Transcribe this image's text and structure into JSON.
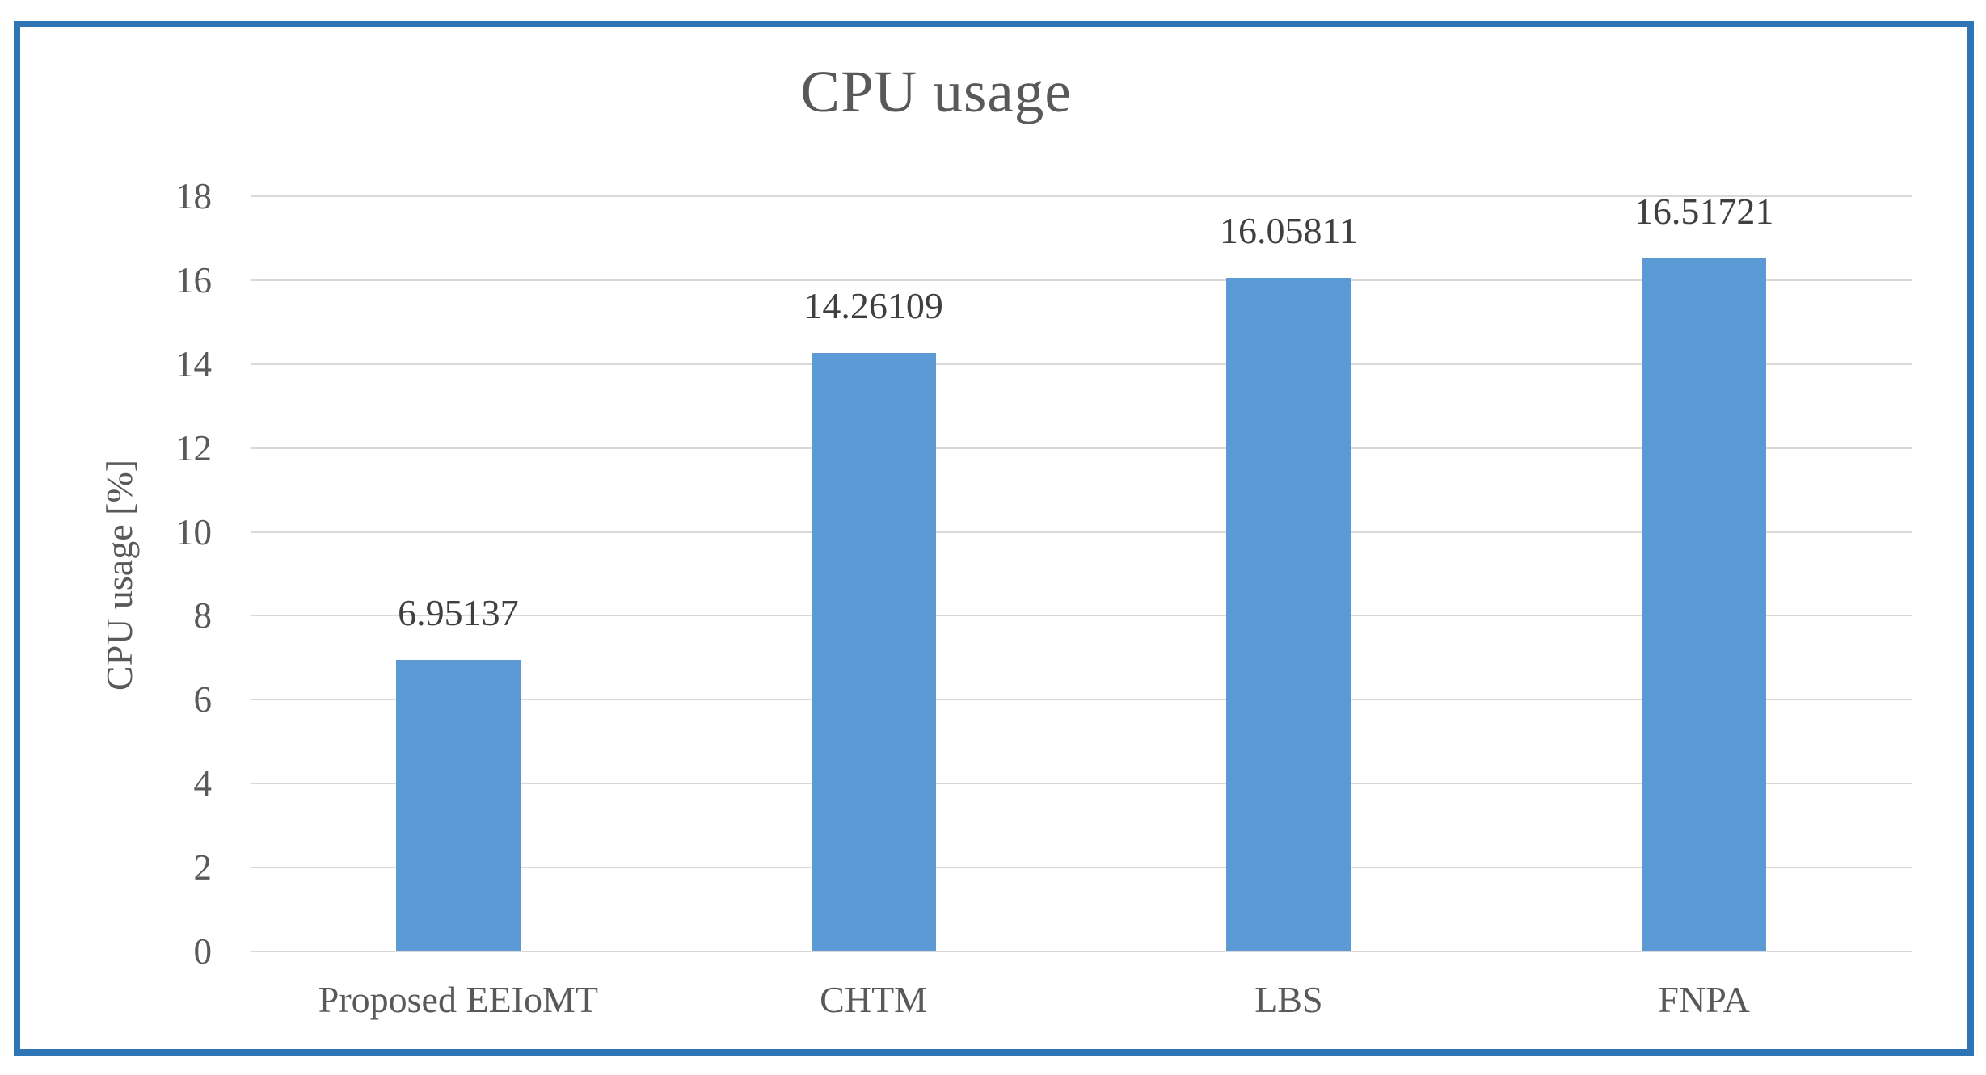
{
  "chart_data": {
    "type": "bar",
    "title": "CPU usage",
    "xlabel": "",
    "ylabel": "CPU usage [%]",
    "categories": [
      "Proposed EEIoMT",
      "CHTM",
      "LBS",
      "FNPA"
    ],
    "values": [
      6.95137,
      14.26109,
      16.05811,
      16.51721
    ],
    "data_labels": [
      "6.95137",
      "14.26109",
      "16.05811",
      "16.51721"
    ],
    "ylim": [
      0,
      18
    ],
    "yticks": [
      0,
      2,
      4,
      6,
      8,
      10,
      12,
      14,
      16,
      18
    ],
    "grid": true,
    "legend_position": "none",
    "colors": {
      "bar": "#5B9AD5",
      "frame_border": "#2E75B6",
      "gridline": "#D9D9D9",
      "axis_text": "#595959",
      "title_text": "#595959",
      "data_label_text": "#3F3F3F",
      "background": "#FFFFFF"
    }
  }
}
